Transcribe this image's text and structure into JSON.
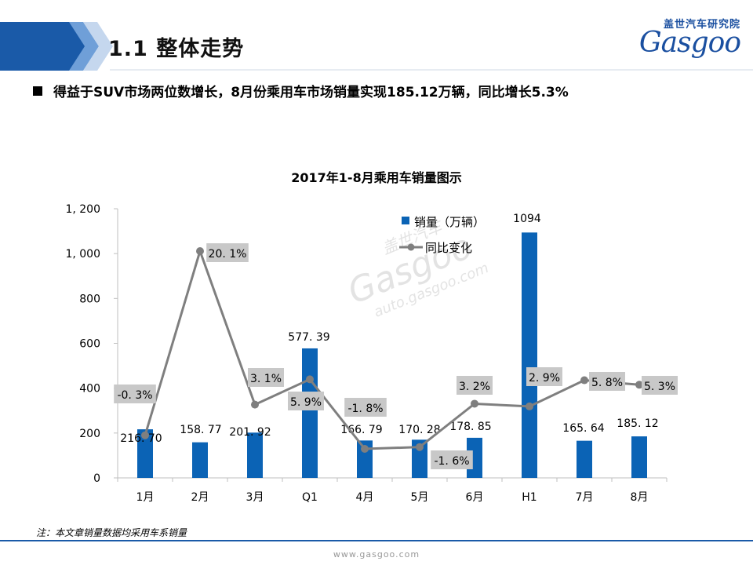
{
  "header": {
    "section_title": "1.1  整体走势",
    "logo_cn": "盖世汽车研究院",
    "logo_en": "Gasgoo"
  },
  "bullet": "得益于SUV市场两位数增长，8月份乘用车市场销量实现185.12万辆，同比增长5.3%",
  "footnote": "注：本文章销量数据均采用车系销量",
  "footer_url": "www.gasgoo.com",
  "watermark": {
    "cn": "盖世汽车",
    "en": "Gasgoo",
    "url": "auto.gasgoo.com"
  },
  "colors": {
    "bar": "#0b63b5",
    "line": "#7f7f7f",
    "label_box": "#c8c8c8",
    "banner": "#1a5aa8"
  },
  "chart_data": {
    "type": "bar",
    "title": "2017年1-8月乘用车销量图示",
    "categories": [
      "1月",
      "2月",
      "3月",
      "Q1",
      "4月",
      "5月",
      "6月",
      "H1",
      "7月",
      "8月"
    ],
    "ylim": [
      0,
      1200
    ],
    "yticks": [
      "0",
      "200",
      "400",
      "600",
      "800",
      "1, 000",
      "1, 200"
    ],
    "grid": false,
    "legend_position": "top-right",
    "series": [
      {
        "name": "销量（万辆）",
        "type": "bar",
        "values": [
          216.7,
          158.77,
          201.92,
          577.39,
          166.79,
          170.28,
          178.85,
          1094,
          165.64,
          185.12
        ],
        "labels": [
          "216. 70",
          "158. 77",
          "201. 92",
          "577. 39",
          "166. 79",
          "170. 28",
          "178. 85",
          "1094",
          "165. 64",
          "185. 12"
        ]
      },
      {
        "name": "同比变化",
        "type": "line",
        "values": [
          -0.3,
          20.1,
          3.1,
          5.9,
          -1.8,
          -1.6,
          3.2,
          2.9,
          5.8,
          5.3
        ],
        "labels": [
          "-0. 3%",
          "20. 1%",
          "3. 1%",
          "5. 9%",
          "-1. 8%",
          "-1. 6%",
          "3. 2%",
          "2. 9%",
          "5. 8%",
          "5. 3%"
        ]
      }
    ]
  }
}
